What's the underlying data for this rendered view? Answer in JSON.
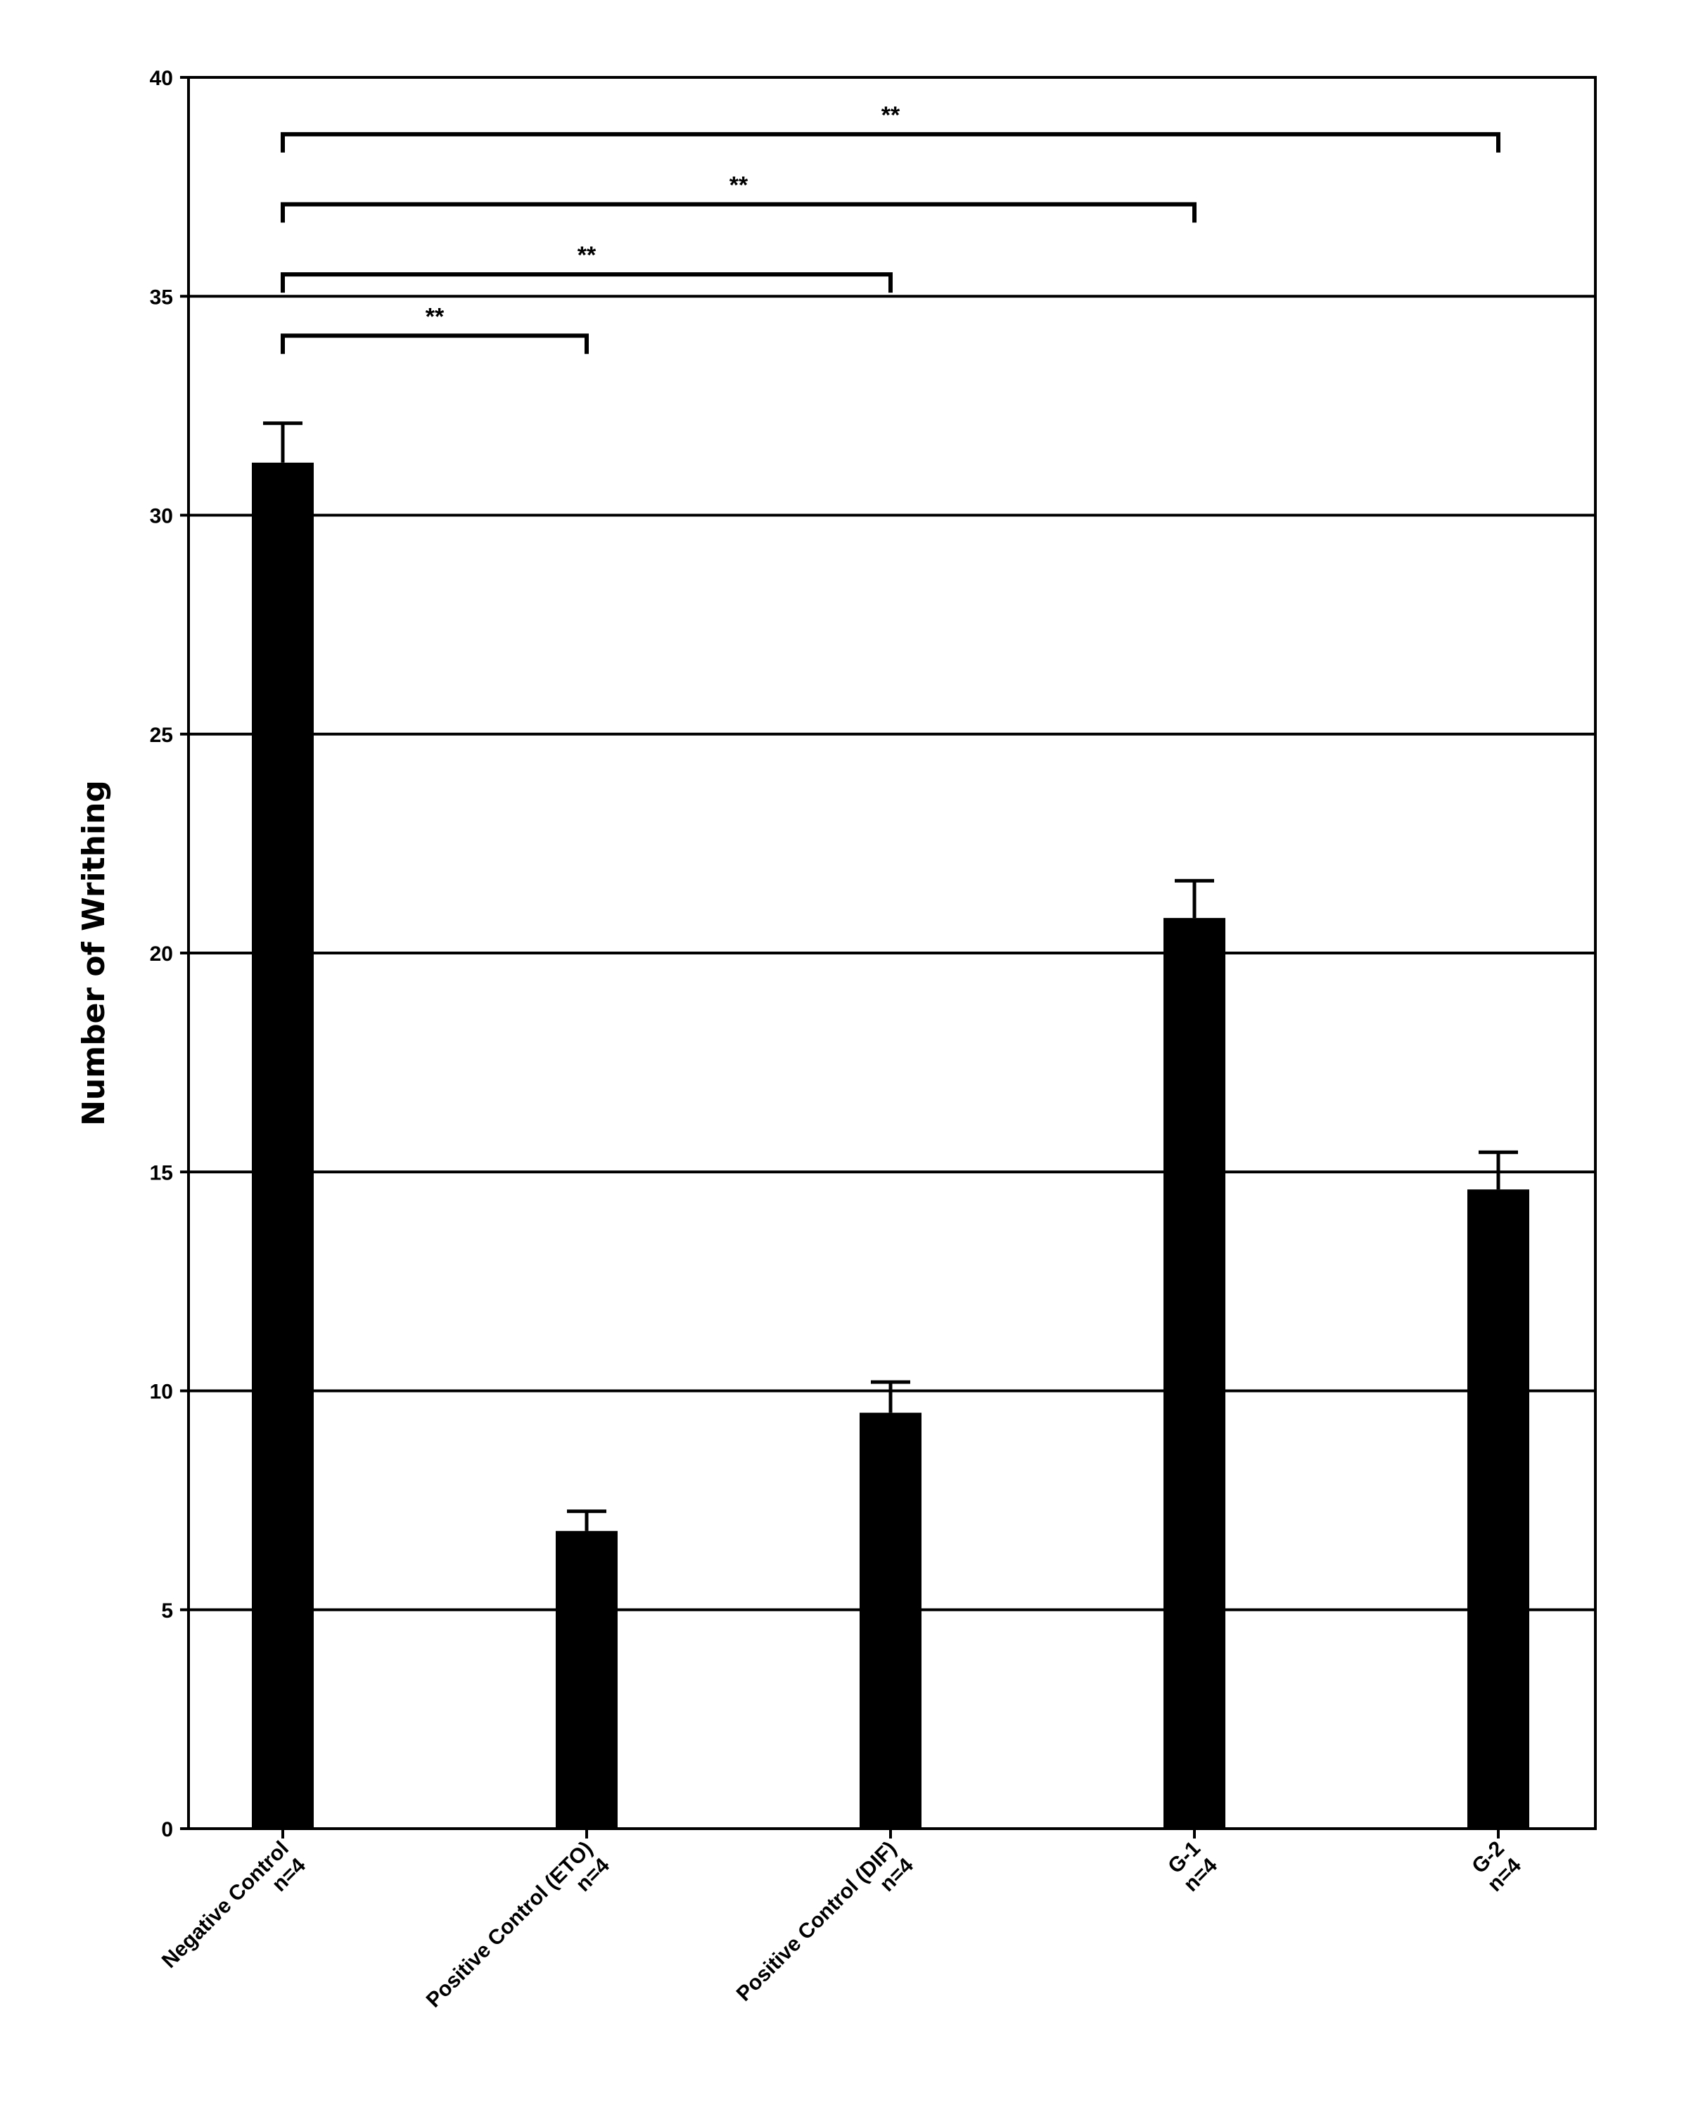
{
  "chart_data": {
    "type": "bar",
    "title": "",
    "xlabel": "",
    "ylabel": "Number of Writhing",
    "ylim": [
      0,
      40
    ],
    "yticks": [
      0,
      5,
      10,
      15,
      20,
      25,
      30,
      35,
      40
    ],
    "grid": true,
    "legend": "none",
    "bar_color": "#000000",
    "categories": [
      {
        "line1": "Negative Control",
        "line2": "n=4"
      },
      {
        "line1": "Positive Control (ETO)",
        "line2": "n=4"
      },
      {
        "line1": "Positive Control (DIF)",
        "line2": "n=4"
      },
      {
        "line1": "G-1",
        "line2": "n=4"
      },
      {
        "line1": "G-2",
        "line2": "n=4"
      }
    ],
    "values": [
      31.2,
      6.8,
      9.5,
      20.8,
      14.6
    ],
    "errors": [
      0.9,
      0.45,
      0.7,
      0.85,
      0.85
    ],
    "significance": [
      {
        "from": 0,
        "to": 1,
        "label": "**",
        "y": 34.1
      },
      {
        "from": 0,
        "to": 2,
        "label": "**",
        "y": 35.5
      },
      {
        "from": 0,
        "to": 3,
        "label": "**",
        "y": 37.1
      },
      {
        "from": 0,
        "to": 4,
        "label": "**",
        "y": 38.7
      }
    ]
  }
}
